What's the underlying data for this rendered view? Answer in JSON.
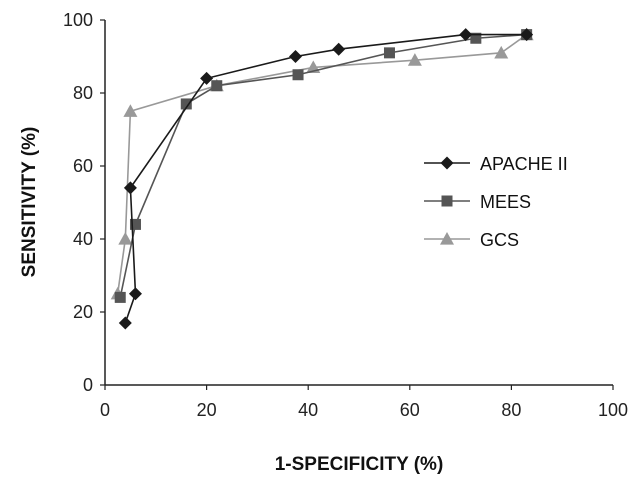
{
  "chart_data": {
    "type": "line",
    "title": "",
    "xlabel": "1-SPECIFICITY (%)",
    "ylabel": "SENSITIVITY (%)",
    "xlim": [
      0,
      100
    ],
    "ylim": [
      0,
      100
    ],
    "xticks": [
      0,
      20,
      40,
      60,
      80,
      100
    ],
    "yticks": [
      0,
      20,
      40,
      60,
      80,
      100
    ],
    "grid": false,
    "legend_position": "right",
    "series": [
      {
        "name": "APACHE II",
        "marker": "diamond",
        "color": "#1a1a1a",
        "points": [
          [
            4,
            17
          ],
          [
            6,
            25
          ],
          [
            5,
            54
          ],
          [
            20,
            84
          ],
          [
            37.5,
            90
          ],
          [
            46,
            92
          ],
          [
            71,
            96
          ],
          [
            83,
            96
          ]
        ]
      },
      {
        "name": "MEES",
        "marker": "square",
        "color": "#555555",
        "points": [
          [
            3,
            24
          ],
          [
            6,
            44
          ],
          [
            16,
            77
          ],
          [
            22,
            82
          ],
          [
            38,
            85
          ],
          [
            56,
            91
          ],
          [
            73,
            95
          ],
          [
            83,
            96
          ]
        ]
      },
      {
        "name": "GCS",
        "marker": "triangle",
        "color": "#999999",
        "points": [
          [
            2.5,
            25
          ],
          [
            4,
            40
          ],
          [
            5,
            75
          ],
          [
            22,
            82
          ],
          [
            41,
            87
          ],
          [
            61,
            89
          ],
          [
            78,
            91
          ],
          [
            83,
            96
          ]
        ]
      }
    ]
  }
}
